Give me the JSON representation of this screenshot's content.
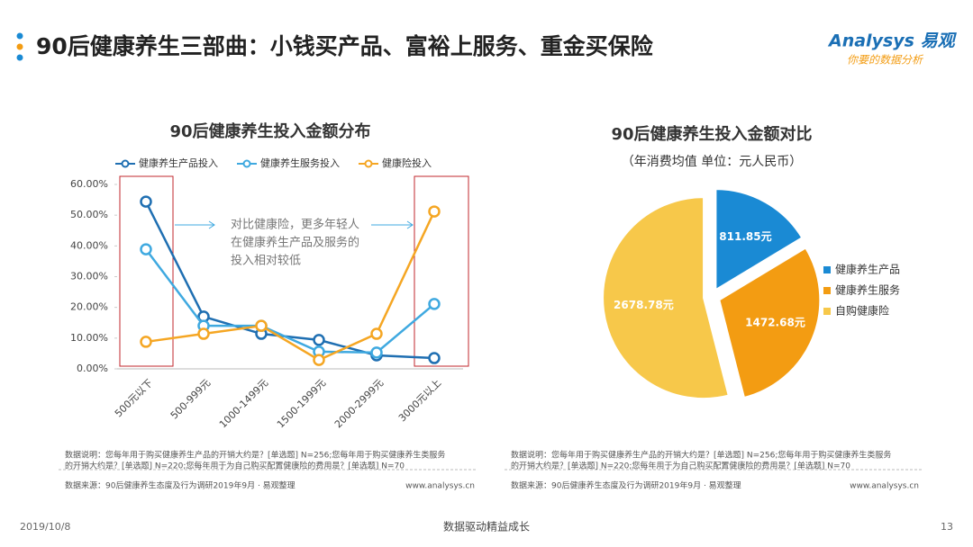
{
  "header": {
    "title": "90后健康养生三部曲：小钱买产品、富裕上服务、重金买保险",
    "logo": "Analysys 易观",
    "slogan": "你要的数据分析"
  },
  "footer": {
    "date": "2019/10/8",
    "motto": "数据驱动精益成长",
    "page": "13"
  },
  "chart_data": [
    {
      "type": "line",
      "title": "90后健康养生投入金额分布",
      "categories": [
        "500元以下",
        "500-999元",
        "1000-1499元",
        "1500-1999元",
        "2000-2999元",
        "3000元以上"
      ],
      "series": [
        {
          "name": "健康养生产品投入",
          "color": "#1f6fb2",
          "values": [
            54.4,
            17.0,
            11.4,
            9.4,
            4.4,
            3.5
          ]
        },
        {
          "name": "健康养生服务投入",
          "color": "#3fa9e0",
          "values": [
            38.9,
            14.0,
            14.0,
            5.6,
            5.3,
            21.1
          ]
        },
        {
          "name": "健康险投入",
          "color": "#f5a623",
          "values": [
            8.8,
            11.4,
            14.0,
            2.9,
            11.4,
            51.2
          ]
        }
      ],
      "ylim": [
        0,
        60
      ],
      "yticks": [
        {
          "value": 0,
          "label": "0.00%"
        },
        {
          "value": 10,
          "label": "10.00%"
        },
        {
          "value": 20,
          "label": "20.00%"
        },
        {
          "value": 30,
          "label": "30.00%"
        },
        {
          "value": 40,
          "label": "40.00%"
        },
        {
          "value": 50,
          "label": "50.00%"
        },
        {
          "value": 60,
          "label": "60.00%"
        }
      ],
      "annotation": [
        "对比健康险，更多年轻人",
        "在健康养生产品及服务的",
        "投入相对较低"
      ],
      "note": [
        "数据说明：您每年用于购买健康养生产品的开销大约是？[单选题] N=256;您每年用于购买健康养生类服务",
        "的开销大约是？[单选题] N=220;您每年用于为自己购买配置健康险的费用是？[单选题] N=70"
      ],
      "source": "数据来源：90后健康养生态度及行为调研2019年9月 · 易观整理",
      "site": "www.analysys.cn"
    },
    {
      "type": "pie",
      "title": "90后健康养生投入金额对比",
      "subtitle": "（年消费均值 单位：元人民币）",
      "categories": [
        "健康养生产品",
        "健康养生服务",
        "自购健康险"
      ],
      "values": [
        811.85,
        1472.68,
        2678.78
      ],
      "value_labels": [
        "811.85元",
        "1472.68元",
        "2678.78元"
      ],
      "colors": [
        "#1a8ad4",
        "#f39c12",
        "#f7c84a"
      ],
      "note": [
        "数据说明：您每年用于购买健康养生产品的开销大约是？[单选题] N=256;您每年用于购买健康养生类服务",
        "的开销大约是？[单选题] N=220;您每年用于为自己购买配置健康险的费用是？[单选题] N=70"
      ],
      "source": "数据来源：90后健康养生态度及行为调研2019年9月 · 易观整理",
      "site": "www.analysys.cn"
    }
  ]
}
